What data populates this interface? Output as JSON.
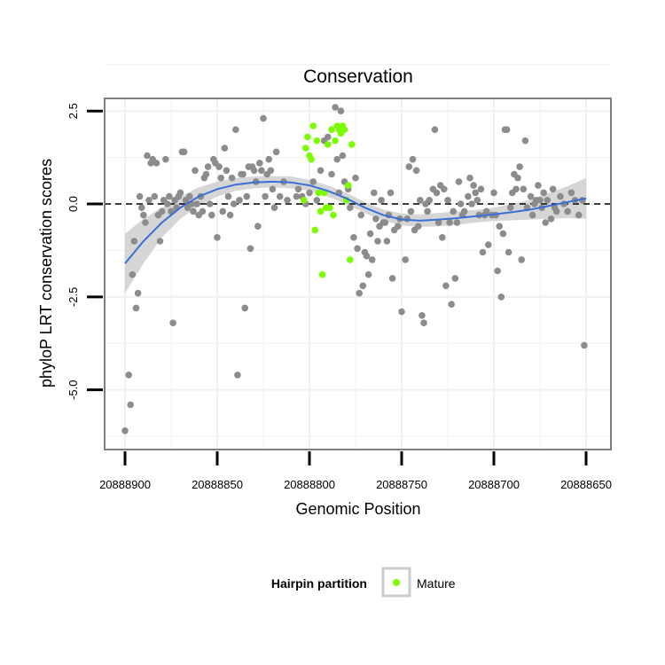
{
  "chart_data": {
    "type": "scatter",
    "title": "Conservation",
    "xlabel": "Genomic Position",
    "ylabel": "phyloP LRT conservation scores",
    "x_reversed": true,
    "xlim": [
      20888650,
      20888900
    ],
    "ylim": [
      -6.2,
      2.6
    ],
    "x_ticks": [
      20888900,
      20888850,
      20888800,
      20888750,
      20888700,
      20888650
    ],
    "x_tick_labels": [
      "20888900",
      "20888850",
      "20888800",
      "20888750",
      "20888700",
      "20888650"
    ],
    "y_ticks": [
      2.5,
      0,
      -2.5,
      -5
    ],
    "y_tick_labels": [
      "2.5",
      "0.0",
      "-2.5",
      "-5.0"
    ],
    "reference_line": 0,
    "grid": true,
    "legend": {
      "title": "Hairpin partition",
      "position": "bottom",
      "entries": [
        "Mature"
      ]
    },
    "colors": {
      "other": "#8c8c8c",
      "mature": "#7cfc00",
      "smooth": "#3a6fd8",
      "band": "#cccccc",
      "panel_border": "#7f7f7f",
      "grid": "#f0f0f0"
    },
    "series": [
      {
        "role": "other",
        "points": [
          [
            20888900,
            -6.1
          ],
          [
            20888898,
            -4.6
          ],
          [
            20888897,
            -5.4
          ],
          [
            20888896,
            -1.9
          ],
          [
            20888895,
            -1.0
          ],
          [
            20888894,
            -2.8
          ],
          [
            20888893,
            -2.4
          ],
          [
            20888892,
            0.2
          ],
          [
            20888891,
            -0.1
          ],
          [
            20888890,
            -0.3
          ],
          [
            20888889,
            -0.5
          ],
          [
            20888888,
            1.3
          ],
          [
            20888887,
            0.1
          ],
          [
            20888886,
            1.1
          ],
          [
            20888885,
            1.2
          ],
          [
            20888884,
            0.2
          ],
          [
            20888883,
            1.1
          ],
          [
            20888882,
            -0.3
          ],
          [
            20888881,
            -1.0
          ],
          [
            20888880,
            -0.2
          ],
          [
            20888879,
            0.1
          ],
          [
            20888878,
            1.2
          ],
          [
            20888877,
            0.0
          ],
          [
            20888876,
            0.2
          ],
          [
            20888875,
            -0.2
          ],
          [
            20888874,
            -3.2
          ],
          [
            20888873,
            0.1
          ],
          [
            20888872,
            -0.1
          ],
          [
            20888871,
            0.2
          ],
          [
            20888870,
            0.3
          ],
          [
            20888869,
            1.4
          ],
          [
            20888868,
            1.4
          ],
          [
            20888867,
            0.1
          ],
          [
            20888866,
            -0.1
          ],
          [
            20888865,
            0.2
          ],
          [
            20888864,
            0.0
          ],
          [
            20888863,
            -0.2
          ],
          [
            20888862,
            0.9
          ],
          [
            20888861,
            0.0
          ],
          [
            20888860,
            -0.3
          ],
          [
            20888859,
            0.2
          ],
          [
            20888858,
            -0.2
          ],
          [
            20888857,
            0.7
          ],
          [
            20888856,
            0.8
          ],
          [
            20888855,
            1.0
          ],
          [
            20888854,
            0.0
          ],
          [
            20888853,
            -0.3
          ],
          [
            20888852,
            1.2
          ],
          [
            20888851,
            1.1
          ],
          [
            20888850,
            -0.9
          ],
          [
            20888849,
            1.0
          ],
          [
            20888848,
            0.7
          ],
          [
            20888847,
            -0.2
          ],
          [
            20888846,
            1.5
          ],
          [
            20888845,
            0.9
          ],
          [
            20888844,
            0.2
          ],
          [
            20888843,
            -0.3
          ],
          [
            20888842,
            0.7
          ],
          [
            20888841,
            0.0
          ],
          [
            20888840,
            2.0
          ],
          [
            20888839,
            -4.6
          ],
          [
            20888838,
            0.1
          ],
          [
            20888837,
            0.8
          ],
          [
            20888836,
            0.8
          ],
          [
            20888835,
            -2.8
          ],
          [
            20888834,
            0.2
          ],
          [
            20888833,
            1.0
          ],
          [
            20888832,
            -1.2
          ],
          [
            20888831,
            1.0
          ],
          [
            20888830,
            0.9
          ],
          [
            20888829,
            0.6
          ],
          [
            20888828,
            -0.6
          ],
          [
            20888827,
            1.1
          ],
          [
            20888826,
            0.9
          ],
          [
            20888825,
            2.3
          ],
          [
            20888824,
            0.2
          ],
          [
            20888823,
            0.8
          ],
          [
            20888822,
            1.2
          ],
          [
            20888821,
            0.9
          ],
          [
            20888820,
            0.4
          ],
          [
            20888819,
            -0.1
          ],
          [
            20888818,
            1.4
          ],
          [
            20888816,
            0.2
          ],
          [
            20888814,
            0.6
          ],
          [
            20888812,
            0.1
          ],
          [
            20888807,
            0.2
          ],
          [
            20888806,
            0.4
          ],
          [
            20888804,
            0.2
          ],
          [
            20888802,
            0.0
          ],
          [
            20888800,
            0.3
          ],
          [
            20888798,
            0.6
          ],
          [
            20888796,
            0.1
          ],
          [
            20888794,
            0.9
          ],
          [
            20888792,
            1.7
          ],
          [
            20888790,
            1.8
          ],
          [
            20888788,
            0.8
          ],
          [
            20888786,
            2.6
          ],
          [
            20888785,
            1.2
          ],
          [
            20888784,
            0.3
          ],
          [
            20888783,
            2.5
          ],
          [
            20888782,
            1.3
          ],
          [
            20888781,
            0.6
          ],
          [
            20888780,
            0.1
          ],
          [
            20888779,
            0.4
          ],
          [
            20888778,
            -0.1
          ],
          [
            20888776,
            -0.9
          ],
          [
            20888775,
            0.7
          ],
          [
            20888774,
            -1.2
          ],
          [
            20888773,
            -2.4
          ],
          [
            20888772,
            -0.3
          ],
          [
            20888771,
            -2.2
          ],
          [
            20888770,
            -1.3
          ],
          [
            20888769,
            -1.4
          ],
          [
            20888768,
            -1.9
          ],
          [
            20888767,
            -0.8
          ],
          [
            20888766,
            -1.5
          ],
          [
            20888765,
            0.3
          ],
          [
            20888764,
            -0.4
          ],
          [
            20888763,
            -1.0
          ],
          [
            20888762,
            -0.6
          ],
          [
            20888761,
            0.1
          ],
          [
            20888760,
            -0.5
          ],
          [
            20888759,
            -0.5
          ],
          [
            20888758,
            -1.0
          ],
          [
            20888757,
            -0.3
          ],
          [
            20888756,
            0.3
          ],
          [
            20888755,
            -2.0
          ],
          [
            20888754,
            -0.7
          ],
          [
            20888752,
            -0.6
          ],
          [
            20888751,
            -0.4
          ],
          [
            20888750,
            -2.9
          ],
          [
            20888748,
            -1.5
          ],
          [
            20888747,
            -0.4
          ],
          [
            20888746,
            1.0
          ],
          [
            20888745,
            -0.2
          ],
          [
            20888744,
            1.2
          ],
          [
            20888743,
            -0.7
          ],
          [
            20888742,
            0.9
          ],
          [
            20888741,
            -0.6
          ],
          [
            20888740,
            0.1
          ],
          [
            20888739,
            -3.0
          ],
          [
            20888738,
            -3.2
          ],
          [
            20888737,
            0.0
          ],
          [
            20888736,
            -0.2
          ],
          [
            20888735,
            0.1
          ],
          [
            20888733,
            0.4
          ],
          [
            20888732,
            2.0
          ],
          [
            20888731,
            0.3
          ],
          [
            20888730,
            -0.5
          ],
          [
            20888729,
            0.5
          ],
          [
            20888728,
            -0.9
          ],
          [
            20888727,
            0.4
          ],
          [
            20888726,
            -2.2
          ],
          [
            20888725,
            0.1
          ],
          [
            20888724,
            -0.5
          ],
          [
            20888723,
            -2.7
          ],
          [
            20888722,
            -0.2
          ],
          [
            20888721,
            -2.0
          ],
          [
            20888720,
            -0.5
          ],
          [
            20888719,
            0.6
          ],
          [
            20888718,
            0.0
          ],
          [
            20888717,
            -0.3
          ],
          [
            20888716,
            -0.2
          ],
          [
            20888714,
            0.2
          ],
          [
            20888713,
            0.7
          ],
          [
            20888712,
            0.0
          ],
          [
            20888711,
            0.5
          ],
          [
            20888710,
            0.3
          ],
          [
            20888709,
            0.1
          ],
          [
            20888708,
            -0.3
          ],
          [
            20888707,
            0.4
          ],
          [
            20888706,
            -1.3
          ],
          [
            20888705,
            -0.3
          ],
          [
            20888704,
            -0.2
          ],
          [
            20888703,
            -1.1
          ],
          [
            20888701,
            -0.3
          ],
          [
            20888700,
            0.3
          ],
          [
            20888699,
            -0.3
          ],
          [
            20888698,
            -1.8
          ],
          [
            20888697,
            -0.6
          ],
          [
            20888696,
            -2.5
          ],
          [
            20888695,
            -0.8
          ],
          [
            20888694,
            2.0
          ],
          [
            20888693,
            2.0
          ],
          [
            20888692,
            -1.3
          ],
          [
            20888691,
            -0.1
          ],
          [
            20888690,
            0.3
          ],
          [
            20888689,
            0.8
          ],
          [
            20888688,
            0.4
          ],
          [
            20888687,
            0.7
          ],
          [
            20888686,
            1.0
          ],
          [
            20888685,
            -1.5
          ],
          [
            20888684,
            0.4
          ],
          [
            20888683,
            1.7
          ],
          [
            20888682,
            -0.1
          ],
          [
            20888680,
            0.2
          ],
          [
            20888679,
            -0.3
          ],
          [
            20888678,
            0.0
          ],
          [
            20888677,
            0.1
          ],
          [
            20888676,
            0.5
          ],
          [
            20888675,
            0.1
          ],
          [
            20888674,
            -0.1
          ],
          [
            20888673,
            0.3
          ],
          [
            20888672,
            -0.5
          ],
          [
            20888671,
            0.1
          ],
          [
            20888669,
            -0.4
          ],
          [
            20888668,
            0.4
          ],
          [
            20888667,
            -0.1
          ],
          [
            20888666,
            -0.2
          ],
          [
            20888664,
            0.2
          ],
          [
            20888662,
            0.0
          ],
          [
            20888660,
            -0.2
          ],
          [
            20888658,
            0.3
          ],
          [
            20888656,
            0.1
          ],
          [
            20888654,
            -0.3
          ],
          [
            20888652,
            0.1
          ],
          [
            20888651,
            -3.8
          ]
        ]
      },
      {
        "name": "Mature",
        "role": "mature",
        "points": [
          [
            20888803,
            0.1
          ],
          [
            20888802,
            1.5
          ],
          [
            20888801,
            1.8
          ],
          [
            20888800,
            1.3
          ],
          [
            20888799,
            1.2
          ],
          [
            20888798,
            2.1
          ],
          [
            20888797,
            -0.7
          ],
          [
            20888796,
            1.7
          ],
          [
            20888795,
            0.3
          ],
          [
            20888794,
            -0.2
          ],
          [
            20888793,
            -1.9
          ],
          [
            20888792,
            0.3
          ],
          [
            20888791,
            -0.1
          ],
          [
            20888790,
            1.6
          ],
          [
            20888789,
            -0.1
          ],
          [
            20888788,
            2.0
          ],
          [
            20888787,
            -0.3
          ],
          [
            20888786,
            1.7
          ],
          [
            20888785,
            2.1
          ],
          [
            20888784,
            2.0
          ],
          [
            20888783,
            1.9
          ],
          [
            20888782,
            2.1
          ],
          [
            20888781,
            2.0
          ],
          [
            20888780,
            0.1
          ],
          [
            20888779,
            0.5
          ],
          [
            20888778,
            -1.5
          ],
          [
            20888777,
            1.6
          ]
        ]
      }
    ],
    "smooth": {
      "x": [
        20888900,
        20888890,
        20888880,
        20888870,
        20888860,
        20888850,
        20888840,
        20888830,
        20888820,
        20888810,
        20888800,
        20888790,
        20888780,
        20888770,
        20888760,
        20888750,
        20888740,
        20888730,
        20888720,
        20888710,
        20888700,
        20888690,
        20888680,
        20888670,
        20888660,
        20888650
      ],
      "y": [
        -1.6,
        -1.0,
        -0.5,
        -0.1,
        0.2,
        0.4,
        0.52,
        0.58,
        0.6,
        0.58,
        0.5,
        0.35,
        0.15,
        -0.1,
        -0.3,
        -0.42,
        -0.45,
        -0.42,
        -0.38,
        -0.33,
        -0.28,
        -0.22,
        -0.15,
        -0.05,
        0.05,
        0.15
      ],
      "lower": [
        -2.4,
        -1.6,
        -0.9,
        -0.4,
        -0.05,
        0.2,
        0.35,
        0.42,
        0.45,
        0.42,
        0.35,
        0.2,
        0.0,
        -0.25,
        -0.45,
        -0.58,
        -0.62,
        -0.6,
        -0.56,
        -0.5,
        -0.46,
        -0.44,
        -0.42,
        -0.4,
        -0.38,
        -0.4
      ],
      "upper": [
        -0.8,
        -0.4,
        -0.1,
        0.2,
        0.45,
        0.6,
        0.7,
        0.74,
        0.75,
        0.74,
        0.65,
        0.5,
        0.3,
        0.05,
        -0.15,
        -0.26,
        -0.28,
        -0.24,
        -0.2,
        -0.16,
        -0.1,
        0.0,
        0.12,
        0.3,
        0.48,
        0.7
      ]
    }
  }
}
